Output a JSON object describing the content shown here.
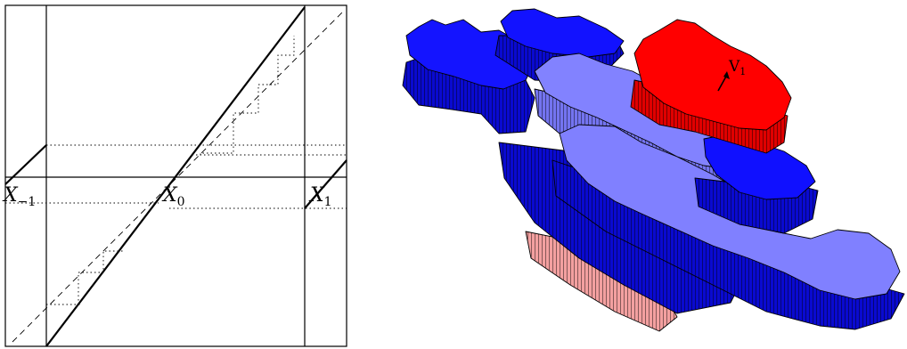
{
  "left_panel": {
    "labels": [
      {
        "id": "x-minus-1",
        "main": "X",
        "sub": "−1"
      },
      {
        "id": "x-0",
        "main": "X",
        "sub": "0"
      },
      {
        "id": "x-1",
        "main": "X",
        "sub": "1"
      }
    ]
  },
  "right_panel": {
    "vector_label": "V",
    "vector_sub": "1",
    "colors": {
      "red_top": "#ff0000",
      "red_side": "#e40000",
      "pink_side": "#f09090",
      "blue_top": "#1111ff",
      "blue_side": "#0a0ad0",
      "light_top": "#8080ff",
      "light_side": "#6a6ae8",
      "outline": "#000000"
    }
  }
}
